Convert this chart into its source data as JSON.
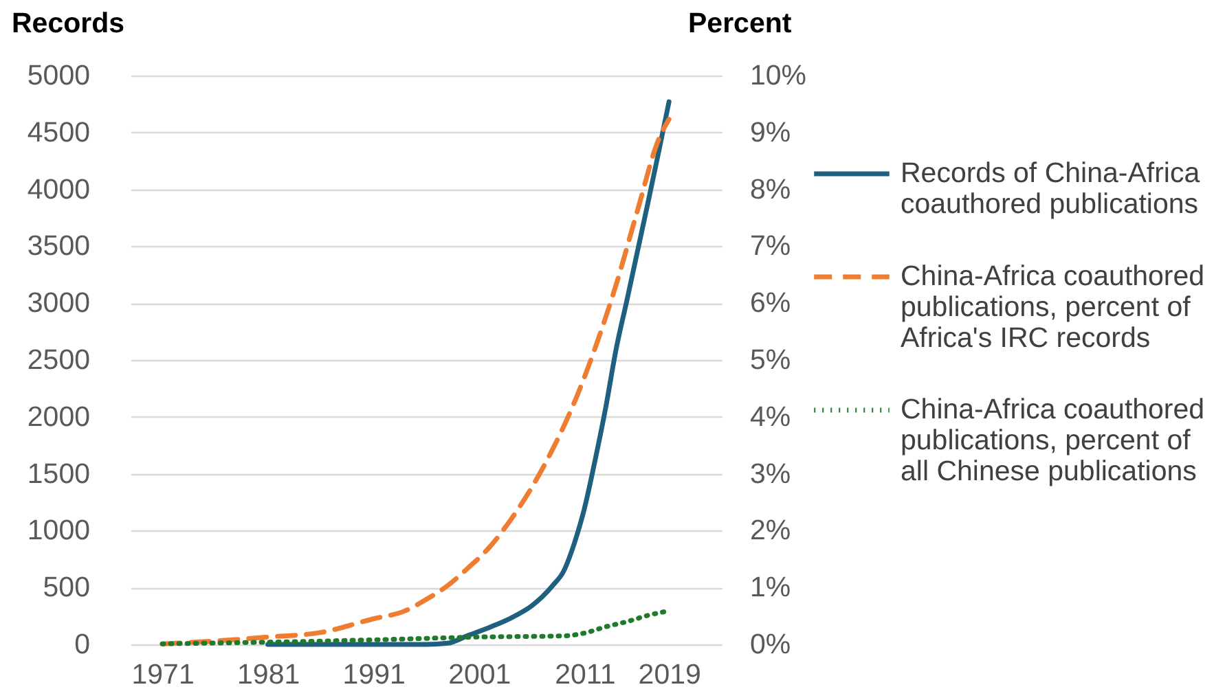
{
  "chart_data": {
    "type": "line",
    "ylabel": "Records",
    "y2label": "Percent",
    "xlim": [
      1968,
      2024
    ],
    "xticks": [
      1971,
      1981,
      1991,
      2001,
      2011,
      2019
    ],
    "ylim": [
      0,
      5000
    ],
    "yticks": [
      0,
      500,
      1000,
      1500,
      2000,
      2500,
      3000,
      3500,
      4000,
      4500,
      5000
    ],
    "y2lim": [
      0,
      10
    ],
    "y2ticks": [
      {
        "value": 0,
        "label": "0%"
      },
      {
        "value": 1,
        "label": "1%"
      },
      {
        "value": 2,
        "label": "2%"
      },
      {
        "value": 3,
        "label": "3%"
      },
      {
        "value": 4,
        "label": "4%"
      },
      {
        "value": 5,
        "label": "5%"
      },
      {
        "value": 6,
        "label": "6%"
      },
      {
        "value": 7,
        "label": "7%"
      },
      {
        "value": 8,
        "label": "8%"
      },
      {
        "value": 9,
        "label": "9%"
      },
      {
        "value": 10,
        "label": "10%"
      }
    ],
    "grid": "y",
    "legend": "right",
    "marker": "none",
    "series": [
      {
        "name": "Records of China-Africa coauthored publications",
        "color": "#1f5f80",
        "line_style": "solid",
        "x": [
          1981,
          1991,
          1996,
          1998,
          2000,
          2002,
          2004,
          2006,
          2007,
          2008,
          2009,
          2010,
          2011,
          2012,
          2013,
          2014,
          2015,
          2016,
          2017,
          2018,
          2019
        ],
        "values": [
          0,
          0,
          0,
          10,
          80,
          150,
          230,
          340,
          420,
          520,
          640,
          880,
          1200,
          1620,
          2080,
          2600,
          3020,
          3450,
          3880,
          4320,
          4770
        ]
      },
      {
        "name": "China-Africa coauthored publications, percent of Africa's IRC records",
        "color": "#ee7d31",
        "line_style": "dashed",
        "axis": "y2",
        "x": [
          1971,
          1976,
          1981,
          1986,
          1991,
          1994,
          1996,
          1998,
          2000,
          2002,
          2004,
          2006,
          2008,
          2010,
          2012,
          2014,
          2016,
          2018,
          2019
        ],
        "values": [
          0.01,
          0.06,
          0.13,
          0.21,
          0.45,
          0.59,
          0.79,
          1.03,
          1.35,
          1.71,
          2.19,
          2.76,
          3.44,
          4.24,
          5.21,
          6.33,
          7.62,
          8.87,
          9.23
        ]
      },
      {
        "name": "China-Africa coauthored publications, percent of all Chinese publications",
        "color": "#217a2c",
        "line_style": "dotted",
        "axis": "y2",
        "x": [
          1971,
          1981,
          1991,
          2001,
          2009,
          2011,
          2013,
          2015,
          2017,
          2019
        ],
        "values": [
          0.01,
          0.04,
          0.08,
          0.13,
          0.15,
          0.2,
          0.31,
          0.4,
          0.51,
          0.59
        ]
      }
    ]
  }
}
